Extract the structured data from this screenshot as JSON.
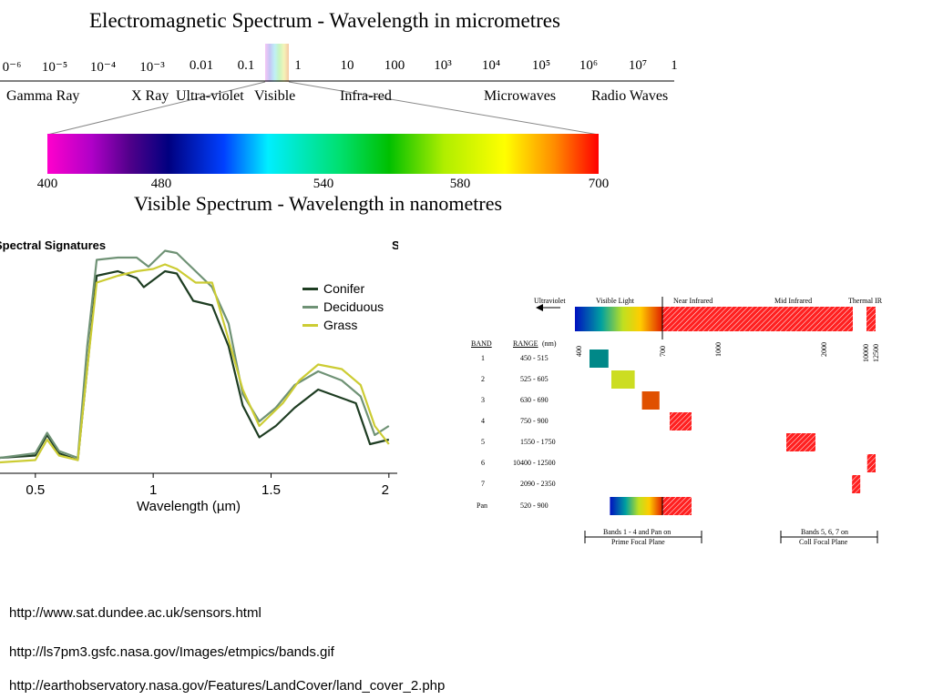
{
  "em_spectrum": {
    "title": "Electromagnetic Spectrum - Wavelength in micrometres",
    "ticks": [
      "0⁻⁶",
      "10⁻⁵",
      "10⁻⁴",
      "10⁻³",
      "0.01",
      "0.1",
      "1",
      "10",
      "100",
      "10³",
      "10⁴",
      "10⁵",
      "10⁶",
      "10⁷",
      "1"
    ],
    "bands": [
      "Gamma Ray",
      "X Ray",
      "Ultra-violet",
      "Visible",
      "Infra-red",
      "Microwaves",
      "Radio Waves"
    ]
  },
  "visible_spectrum": {
    "title": "Visible Spectrum - Wavelength in nanometres",
    "labels": [
      "400",
      "480",
      "540",
      "580",
      "700"
    ]
  },
  "spectral_signatures": {
    "title": "Spectral Signatures",
    "right_cut": "S",
    "chart_data": {
      "type": "line",
      "title": "Spectral Signatures",
      "xlabel": "Wavelength (µm)",
      "ylabel": "",
      "x_ticks": [
        "0.5",
        "1",
        "1.5",
        "2"
      ],
      "xlim": [
        0.35,
        2.02
      ],
      "ylim": [
        0,
        1
      ],
      "legend_position": "top-right",
      "series": [
        {
          "name": "Conifer",
          "color": "#1e3d22",
          "x": [
            0.35,
            0.5,
            0.55,
            0.6,
            0.68,
            0.72,
            0.76,
            0.85,
            0.93,
            0.96,
            1.05,
            1.1,
            1.17,
            1.25,
            1.32,
            1.38,
            1.45,
            1.52,
            1.6,
            1.7,
            1.78,
            1.86,
            1.92,
            2.0
          ],
          "y": [
            0.06,
            0.07,
            0.16,
            0.08,
            0.05,
            0.45,
            0.86,
            0.88,
            0.85,
            0.81,
            0.88,
            0.87,
            0.75,
            0.73,
            0.55,
            0.29,
            0.15,
            0.2,
            0.28,
            0.36,
            0.33,
            0.3,
            0.12,
            0.14
          ]
        },
        {
          "name": "Deciduous",
          "color": "#6f9275",
          "x": [
            0.35,
            0.5,
            0.55,
            0.6,
            0.68,
            0.72,
            0.76,
            0.85,
            0.93,
            0.98,
            1.05,
            1.1,
            1.18,
            1.25,
            1.32,
            1.38,
            1.45,
            1.52,
            1.6,
            1.7,
            1.8,
            1.88,
            1.94,
            2.0
          ],
          "y": [
            0.06,
            0.08,
            0.17,
            0.09,
            0.06,
            0.55,
            0.93,
            0.94,
            0.94,
            0.9,
            0.97,
            0.96,
            0.88,
            0.81,
            0.65,
            0.34,
            0.22,
            0.28,
            0.38,
            0.44,
            0.4,
            0.33,
            0.16,
            0.2
          ]
        },
        {
          "name": "Grass",
          "color": "#cccc33",
          "x": [
            0.35,
            0.5,
            0.55,
            0.6,
            0.68,
            0.72,
            0.76,
            0.85,
            0.93,
            1.0,
            1.05,
            1.1,
            1.18,
            1.25,
            1.32,
            1.38,
            1.45,
            1.55,
            1.62,
            1.7,
            1.8,
            1.88,
            1.94,
            2.0
          ],
          "y": [
            0.04,
            0.05,
            0.14,
            0.07,
            0.05,
            0.45,
            0.83,
            0.86,
            0.88,
            0.89,
            0.91,
            0.89,
            0.83,
            0.83,
            0.58,
            0.36,
            0.2,
            0.3,
            0.4,
            0.47,
            0.45,
            0.38,
            0.2,
            0.12
          ]
        }
      ]
    }
  },
  "landsat": {
    "regions": [
      "Ultraviolet",
      "Visible Light",
      "Near Infrared",
      "Mid Infrared",
      "Thermal IR"
    ],
    "scale_labels": [
      "400",
      "700",
      "1000",
      "2000",
      "10000",
      "12500"
    ],
    "band_header": "BAND",
    "range_header": "RANGE",
    "range_unit": "(nm)",
    "rows": [
      {
        "band": "1",
        "range": "450 - 515",
        "start": 450,
        "end": 515
      },
      {
        "band": "2",
        "range": "525 - 605",
        "start": 525,
        "end": 605
      },
      {
        "band": "3",
        "range": "630 - 690",
        "start": 630,
        "end": 690
      },
      {
        "band": "4",
        "range": "750 - 900",
        "start": 750,
        "end": 900
      },
      {
        "band": "5",
        "range": "1550 - 1750",
        "start": 1550,
        "end": 1750
      },
      {
        "band": "6",
        "range": "10400 - 12500",
        "start": 10400,
        "end": 12500
      },
      {
        "band": "7",
        "range": "2090 - 2350",
        "start": 2090,
        "end": 2350
      },
      {
        "band": "Pan",
        "range": "520 - 900",
        "start": 520,
        "end": 900
      }
    ],
    "footer_left": [
      "Bands 1 - 4 and Pan on",
      "Prime Focal Plane"
    ],
    "footer_right": [
      "Bands 5, 6, 7 on",
      "Coll Focal Plane"
    ]
  },
  "sources": [
    "http://www.sat.dundee.ac.uk/sensors.html",
    "http://ls7pm3.gsfc.nasa.gov/Images/etmpics/bands.gif",
    "http://earthobservatory.nasa.gov/Features/LandCover/land_cover_2.php"
  ]
}
